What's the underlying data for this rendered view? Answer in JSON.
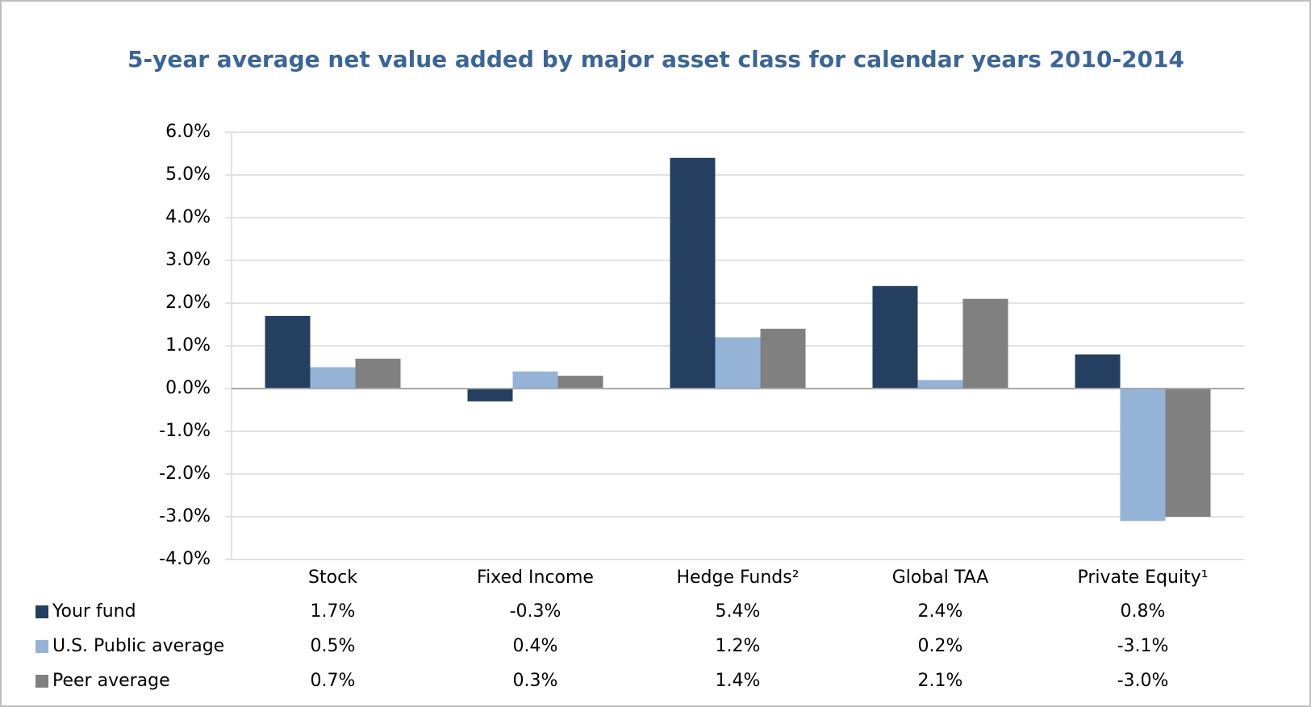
{
  "chart_data": {
    "type": "bar",
    "title": "5-year average net value added by major asset class for calendar years 2010-2014",
    "categories": [
      "Stock",
      "Fixed Income",
      "Hedge Funds²",
      "Global TAA",
      "Private Equity¹"
    ],
    "series": [
      {
        "name": "Your fund",
        "color": "#243f60",
        "values": [
          1.7,
          -0.3,
          5.4,
          2.4,
          0.8
        ],
        "value_labels": [
          "1.7%",
          "-0.3%",
          "5.4%",
          "2.4%",
          "0.8%"
        ]
      },
      {
        "name": "U.S. Public average",
        "color": "#95b3d7",
        "values": [
          0.5,
          0.4,
          1.2,
          0.2,
          -3.1
        ],
        "value_labels": [
          "0.5%",
          "0.4%",
          "1.2%",
          "0.2%",
          "-3.1%"
        ]
      },
      {
        "name": "Peer average",
        "color": "#808080",
        "values": [
          0.7,
          0.3,
          1.4,
          2.1,
          -3.0
        ],
        "value_labels": [
          "0.7%",
          "0.3%",
          "1.4%",
          "2.1%",
          "-3.0%"
        ]
      }
    ],
    "ylim": [
      -4,
      6
    ],
    "yticks": [
      {
        "value": -4,
        "label": "-4.0%"
      },
      {
        "value": -3,
        "label": "-3.0%"
      },
      {
        "value": -2,
        "label": "-2.0%"
      },
      {
        "value": -1,
        "label": "-1.0%"
      },
      {
        "value": 0,
        "label": "0.0%"
      },
      {
        "value": 1,
        "label": "1.0%"
      },
      {
        "value": 2,
        "label": "2.0%"
      },
      {
        "value": 3,
        "label": "3.0%"
      },
      {
        "value": 4,
        "label": "4.0%"
      },
      {
        "value": 5,
        "label": "5.0%"
      },
      {
        "value": 6,
        "label": "6.0%"
      }
    ],
    "grid": true
  }
}
